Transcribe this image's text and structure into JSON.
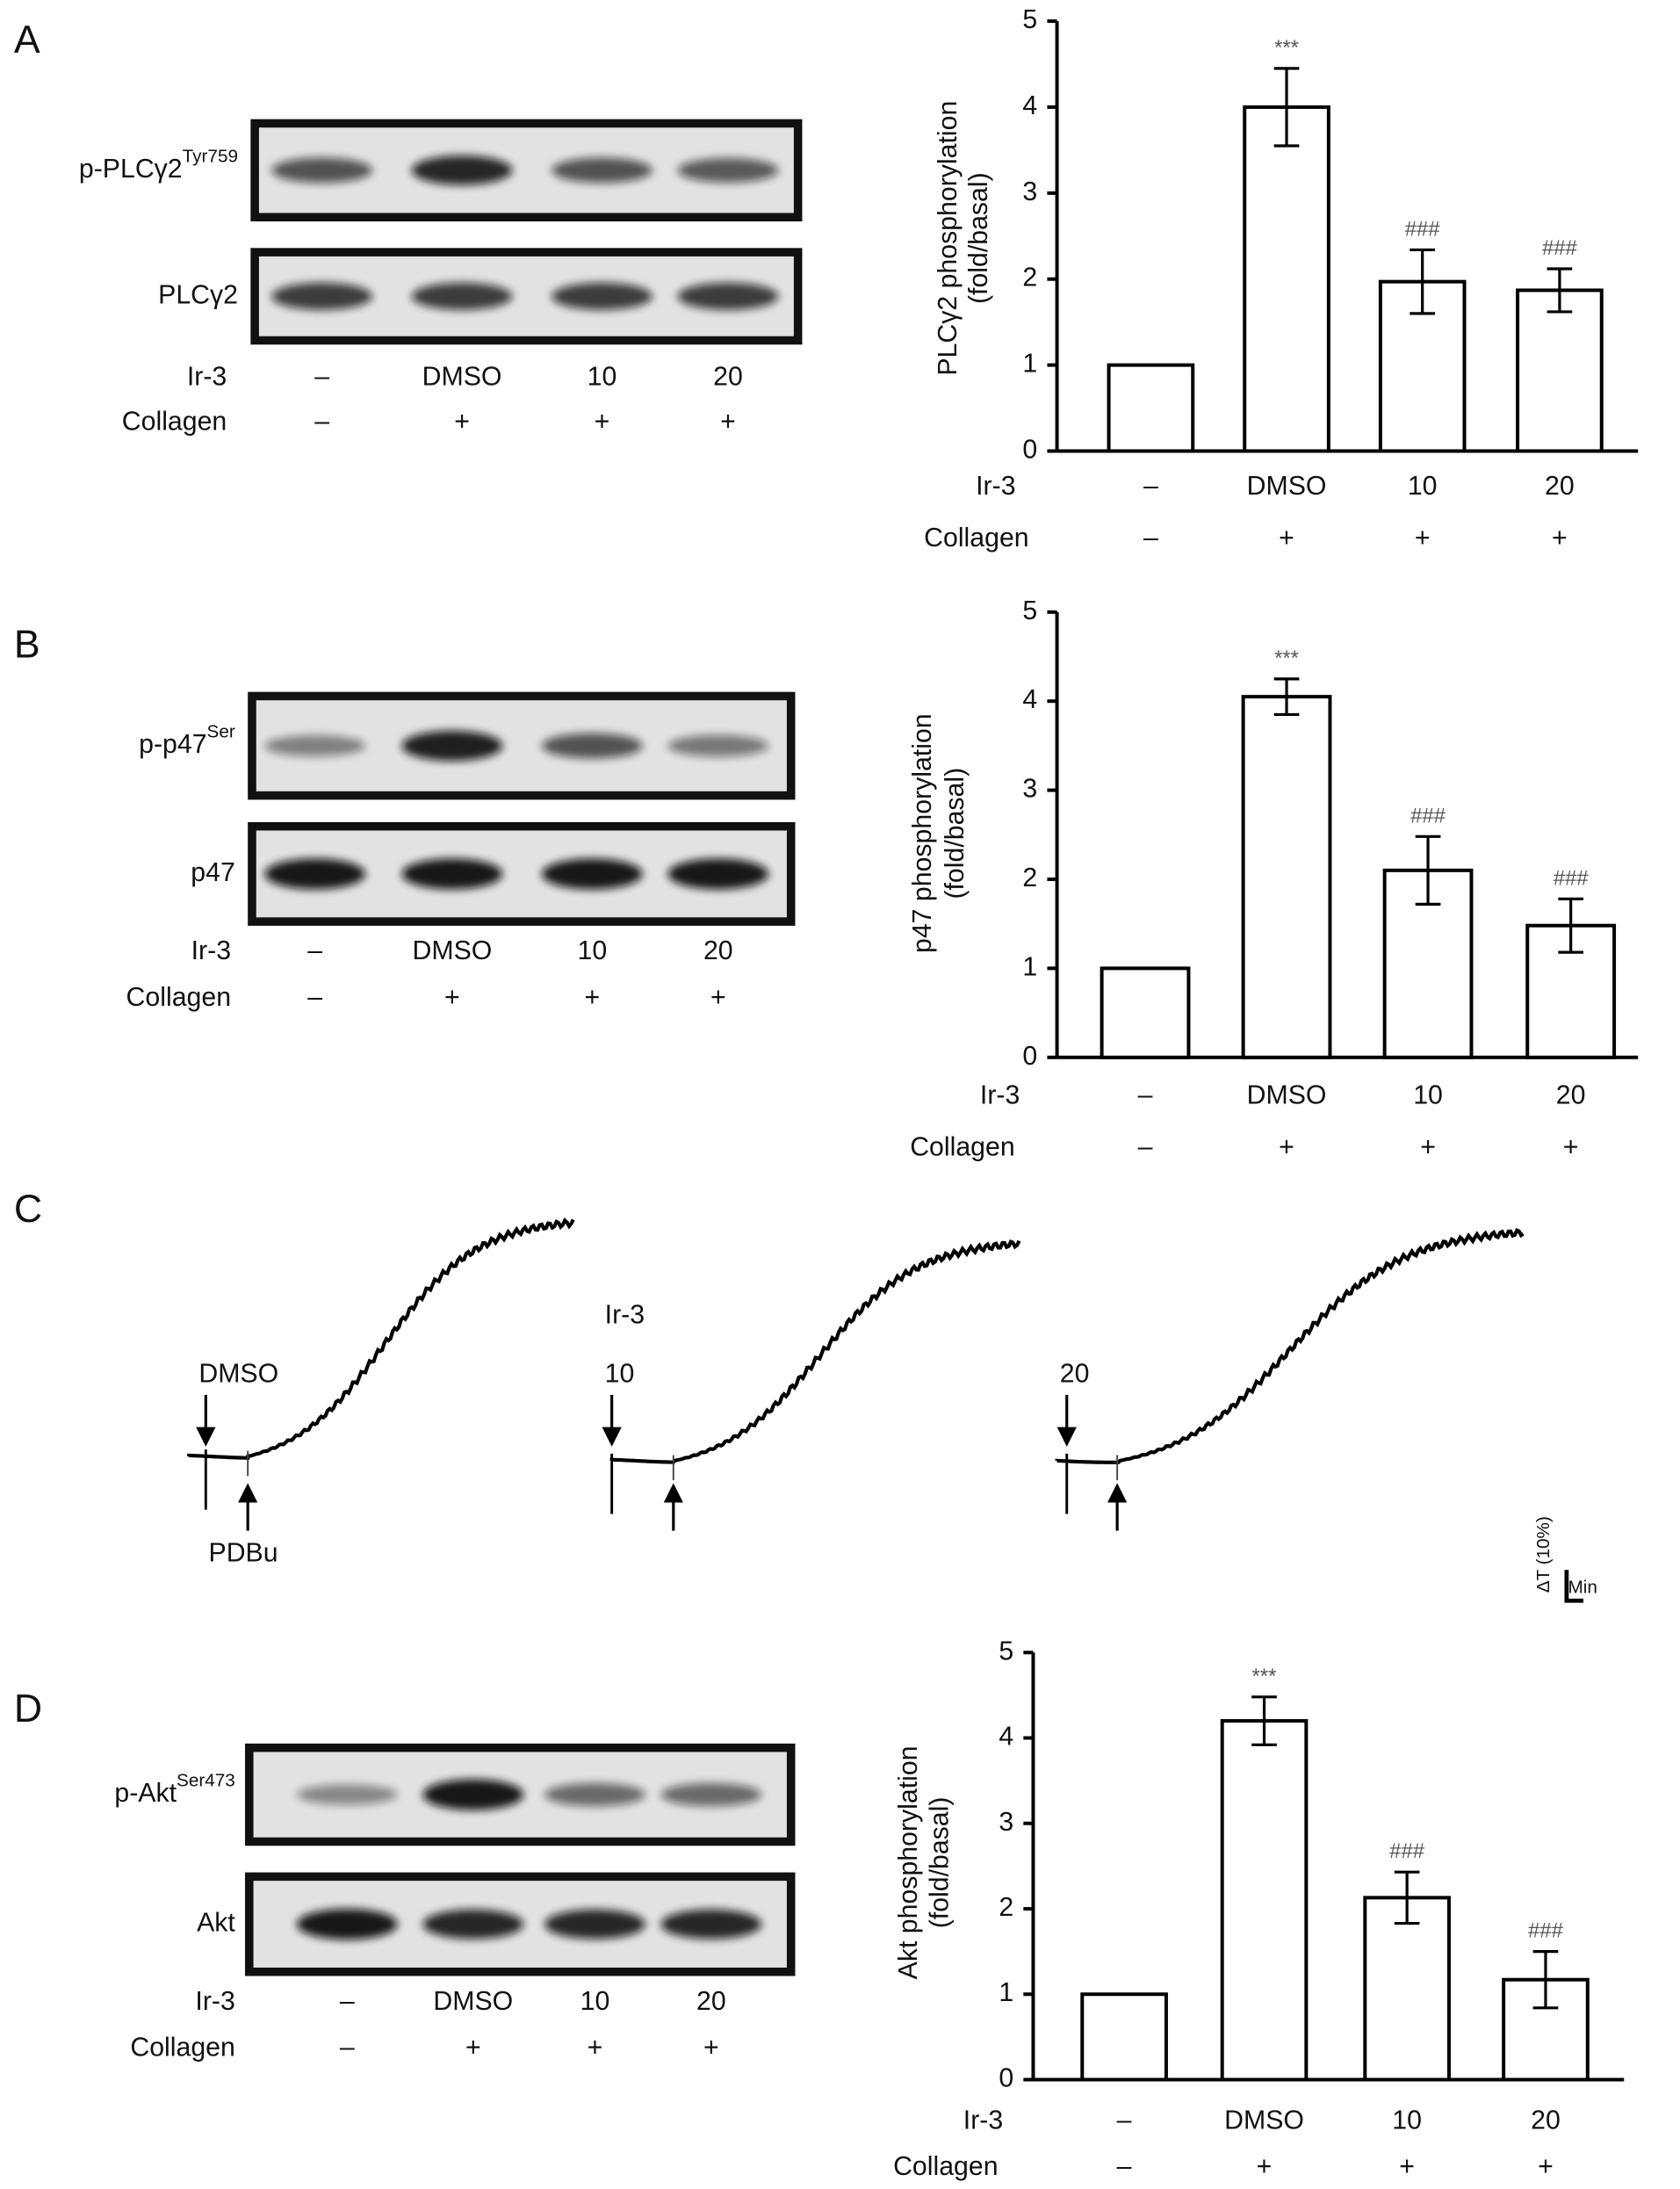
{
  "panels": [
    "A",
    "B",
    "C",
    "D"
  ],
  "chart_data": [
    {
      "type": "bar",
      "ylabel": [
        "PLCγ2 phosphorylation",
        "(fold/basal)"
      ],
      "categories_label": "Ir-3",
      "categories": [
        "–",
        "DMSO",
        "10",
        "20"
      ],
      "collagen_label": "Collagen",
      "collagen": [
        "–",
        "+",
        "+",
        "+"
      ],
      "values": [
        1,
        4.0,
        1.97,
        1.87
      ],
      "errors": [
        null,
        0.45,
        0.37,
        0.25
      ],
      "annotations": [
        null,
        "***",
        "###",
        "###"
      ],
      "ylim": [
        0,
        5
      ],
      "yticks": [
        0,
        1,
        2,
        3,
        4,
        5
      ],
      "color": "#ffffff"
    },
    {
      "type": "bar",
      "ylabel": [
        "p47 phosphorylation",
        "(fold/basal)"
      ],
      "categories_label": "Ir-3",
      "categories": [
        "–",
        "DMSO",
        "10",
        "20"
      ],
      "collagen_label": "Collagen",
      "collagen": [
        "–",
        "+",
        "+",
        "+"
      ],
      "values": [
        1,
        4.05,
        2.1,
        1.48
      ],
      "errors": [
        null,
        0.2,
        0.38,
        0.3
      ],
      "annotations": [
        null,
        "***",
        "###",
        "###"
      ],
      "ylim": [
        0,
        5
      ],
      "yticks": [
        0,
        1,
        2,
        3,
        4,
        5
      ],
      "color": "#ffffff"
    },
    {
      "type": "bar",
      "ylabel": [
        "Akt phosphorylation",
        "(fold/basal)"
      ],
      "categories_label": "Ir-3",
      "categories": [
        "–",
        "DMSO",
        "10",
        "20"
      ],
      "collagen_label": "Collagen",
      "collagen": [
        "–",
        "+",
        "+",
        "+"
      ],
      "values": [
        1,
        4.2,
        2.13,
        1.17
      ],
      "errors": [
        null,
        0.28,
        0.3,
        0.33
      ],
      "annotations": [
        null,
        "***",
        "###",
        "###"
      ],
      "ylim": [
        0,
        5
      ],
      "yticks": [
        0,
        1,
        2,
        3,
        4,
        5
      ],
      "color": "#ffffff"
    }
  ],
  "blots": [
    {
      "rows": [
        {
          "label": "p-PLCγ2",
          "sup": "Tyr759"
        },
        {
          "label": "PLCγ2"
        }
      ],
      "treatments": [
        {
          "label": "Ir-3",
          "values": [
            "–",
            "DMSO",
            "10",
            "20"
          ]
        },
        {
          "label": "Collagen",
          "values": [
            "–",
            "+",
            "+",
            "+"
          ]
        }
      ]
    },
    {
      "rows": [
        {
          "label": "p-p47",
          "sup": "Ser"
        },
        {
          "label": "p47"
        }
      ],
      "treatments": [
        {
          "label": "Ir-3",
          "values": [
            "–",
            "DMSO",
            "10",
            "20"
          ]
        },
        {
          "label": "Collagen",
          "values": [
            "–",
            "+",
            "+",
            "+"
          ]
        }
      ]
    },
    {
      "rows": [
        {
          "label": "p-Akt",
          "sup": "Ser473"
        },
        {
          "label": "Akt"
        }
      ],
      "treatments": [
        {
          "label": "Ir-3",
          "values": [
            "–",
            "DMSO",
            "10",
            "20"
          ]
        },
        {
          "label": "Collagen",
          "values": [
            "–",
            "+",
            "+",
            "+"
          ]
        }
      ]
    }
  ],
  "traces": {
    "items": [
      {
        "label": "DMSO",
        "stimulus": "PDBu"
      },
      {
        "group": "Ir-3",
        "label": "10"
      },
      {
        "label": "20"
      }
    ],
    "scale": {
      "y": "ΔT (10%)",
      "x": "Min"
    }
  }
}
